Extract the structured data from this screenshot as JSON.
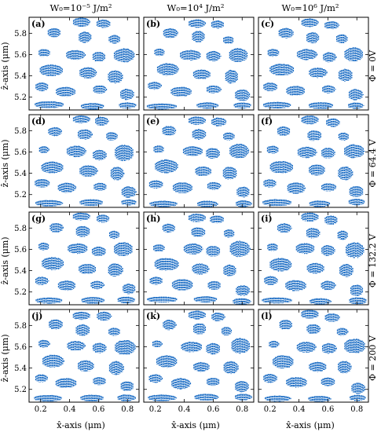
{
  "colors": {
    "domain": "#1f6fc5",
    "frame": "#000000"
  },
  "column_titles": [
    "W₀=10⁻⁵ J/m²",
    "W₀=10⁴ J/m²",
    "W₀=10⁶ J/m²"
  ],
  "row_titles": [
    "Φ = 0V",
    "Φ = 64.4 V",
    "Φ = 132.2 V",
    "Φ = 200 V"
  ],
  "chart_data": {
    "type": "heatmap",
    "layout": {
      "rows": 4,
      "cols": 3
    },
    "xlabel": "x̂-axis (μm)",
    "ylabel": "ẑ-axis (μm)",
    "xlim": [
      0.12,
      0.88
    ],
    "ylim": [
      5.08,
      5.95
    ],
    "xticks": [
      0.2,
      0.4,
      0.6,
      0.8
    ],
    "xtick_labels": [
      "0.2",
      "0.4",
      "0.6",
      "0.8"
    ],
    "yticks": [
      5.2,
      5.4,
      5.6,
      5.8
    ],
    "ytick_labels": [
      "5.2",
      "5.4",
      "5.6",
      "5.8"
    ],
    "panel_labels": [
      "(a)",
      "(b)",
      "(c)",
      "(d)",
      "(e)",
      "(f)",
      "(g)",
      "(h)",
      "(i)",
      "(j)",
      "(k)",
      "(l)"
    ],
    "domains": [
      {
        "x": 0.48,
        "z": 5.9,
        "rx": 0.06,
        "rz": 0.04
      },
      {
        "x": 0.63,
        "z": 5.88,
        "rx": 0.05,
        "rz": 0.04
      },
      {
        "x": 0.3,
        "z": 5.8,
        "rx": 0.05,
        "rz": 0.045
      },
      {
        "x": 0.5,
        "z": 5.76,
        "rx": 0.05,
        "rz": 0.05
      },
      {
        "x": 0.7,
        "z": 5.74,
        "rx": 0.04,
        "rz": 0.04
      },
      {
        "x": 0.22,
        "z": 5.62,
        "rx": 0.04,
        "rz": 0.035
      },
      {
        "x": 0.45,
        "z": 5.6,
        "rx": 0.07,
        "rz": 0.05
      },
      {
        "x": 0.6,
        "z": 5.58,
        "rx": 0.05,
        "rz": 0.05
      },
      {
        "x": 0.78,
        "z": 5.6,
        "rx": 0.07,
        "rz": 0.07
      },
      {
        "x": 0.28,
        "z": 5.46,
        "rx": 0.08,
        "rz": 0.06
      },
      {
        "x": 0.52,
        "z": 5.42,
        "rx": 0.06,
        "rz": 0.05
      },
      {
        "x": 0.72,
        "z": 5.4,
        "rx": 0.05,
        "rz": 0.06
      },
      {
        "x": 0.2,
        "z": 5.3,
        "rx": 0.05,
        "rz": 0.04
      },
      {
        "x": 0.38,
        "z": 5.26,
        "rx": 0.07,
        "rz": 0.05
      },
      {
        "x": 0.6,
        "z": 5.27,
        "rx": 0.05,
        "rz": 0.04
      },
      {
        "x": 0.8,
        "z": 5.22,
        "rx": 0.05,
        "rz": 0.05
      },
      {
        "x": 0.25,
        "z": 5.12,
        "rx": 0.1,
        "rz": 0.03
      },
      {
        "x": 0.55,
        "z": 5.12,
        "rx": 0.08,
        "rz": 0.03
      },
      {
        "x": 0.8,
        "z": 5.12,
        "rx": 0.06,
        "rz": 0.03
      }
    ]
  }
}
